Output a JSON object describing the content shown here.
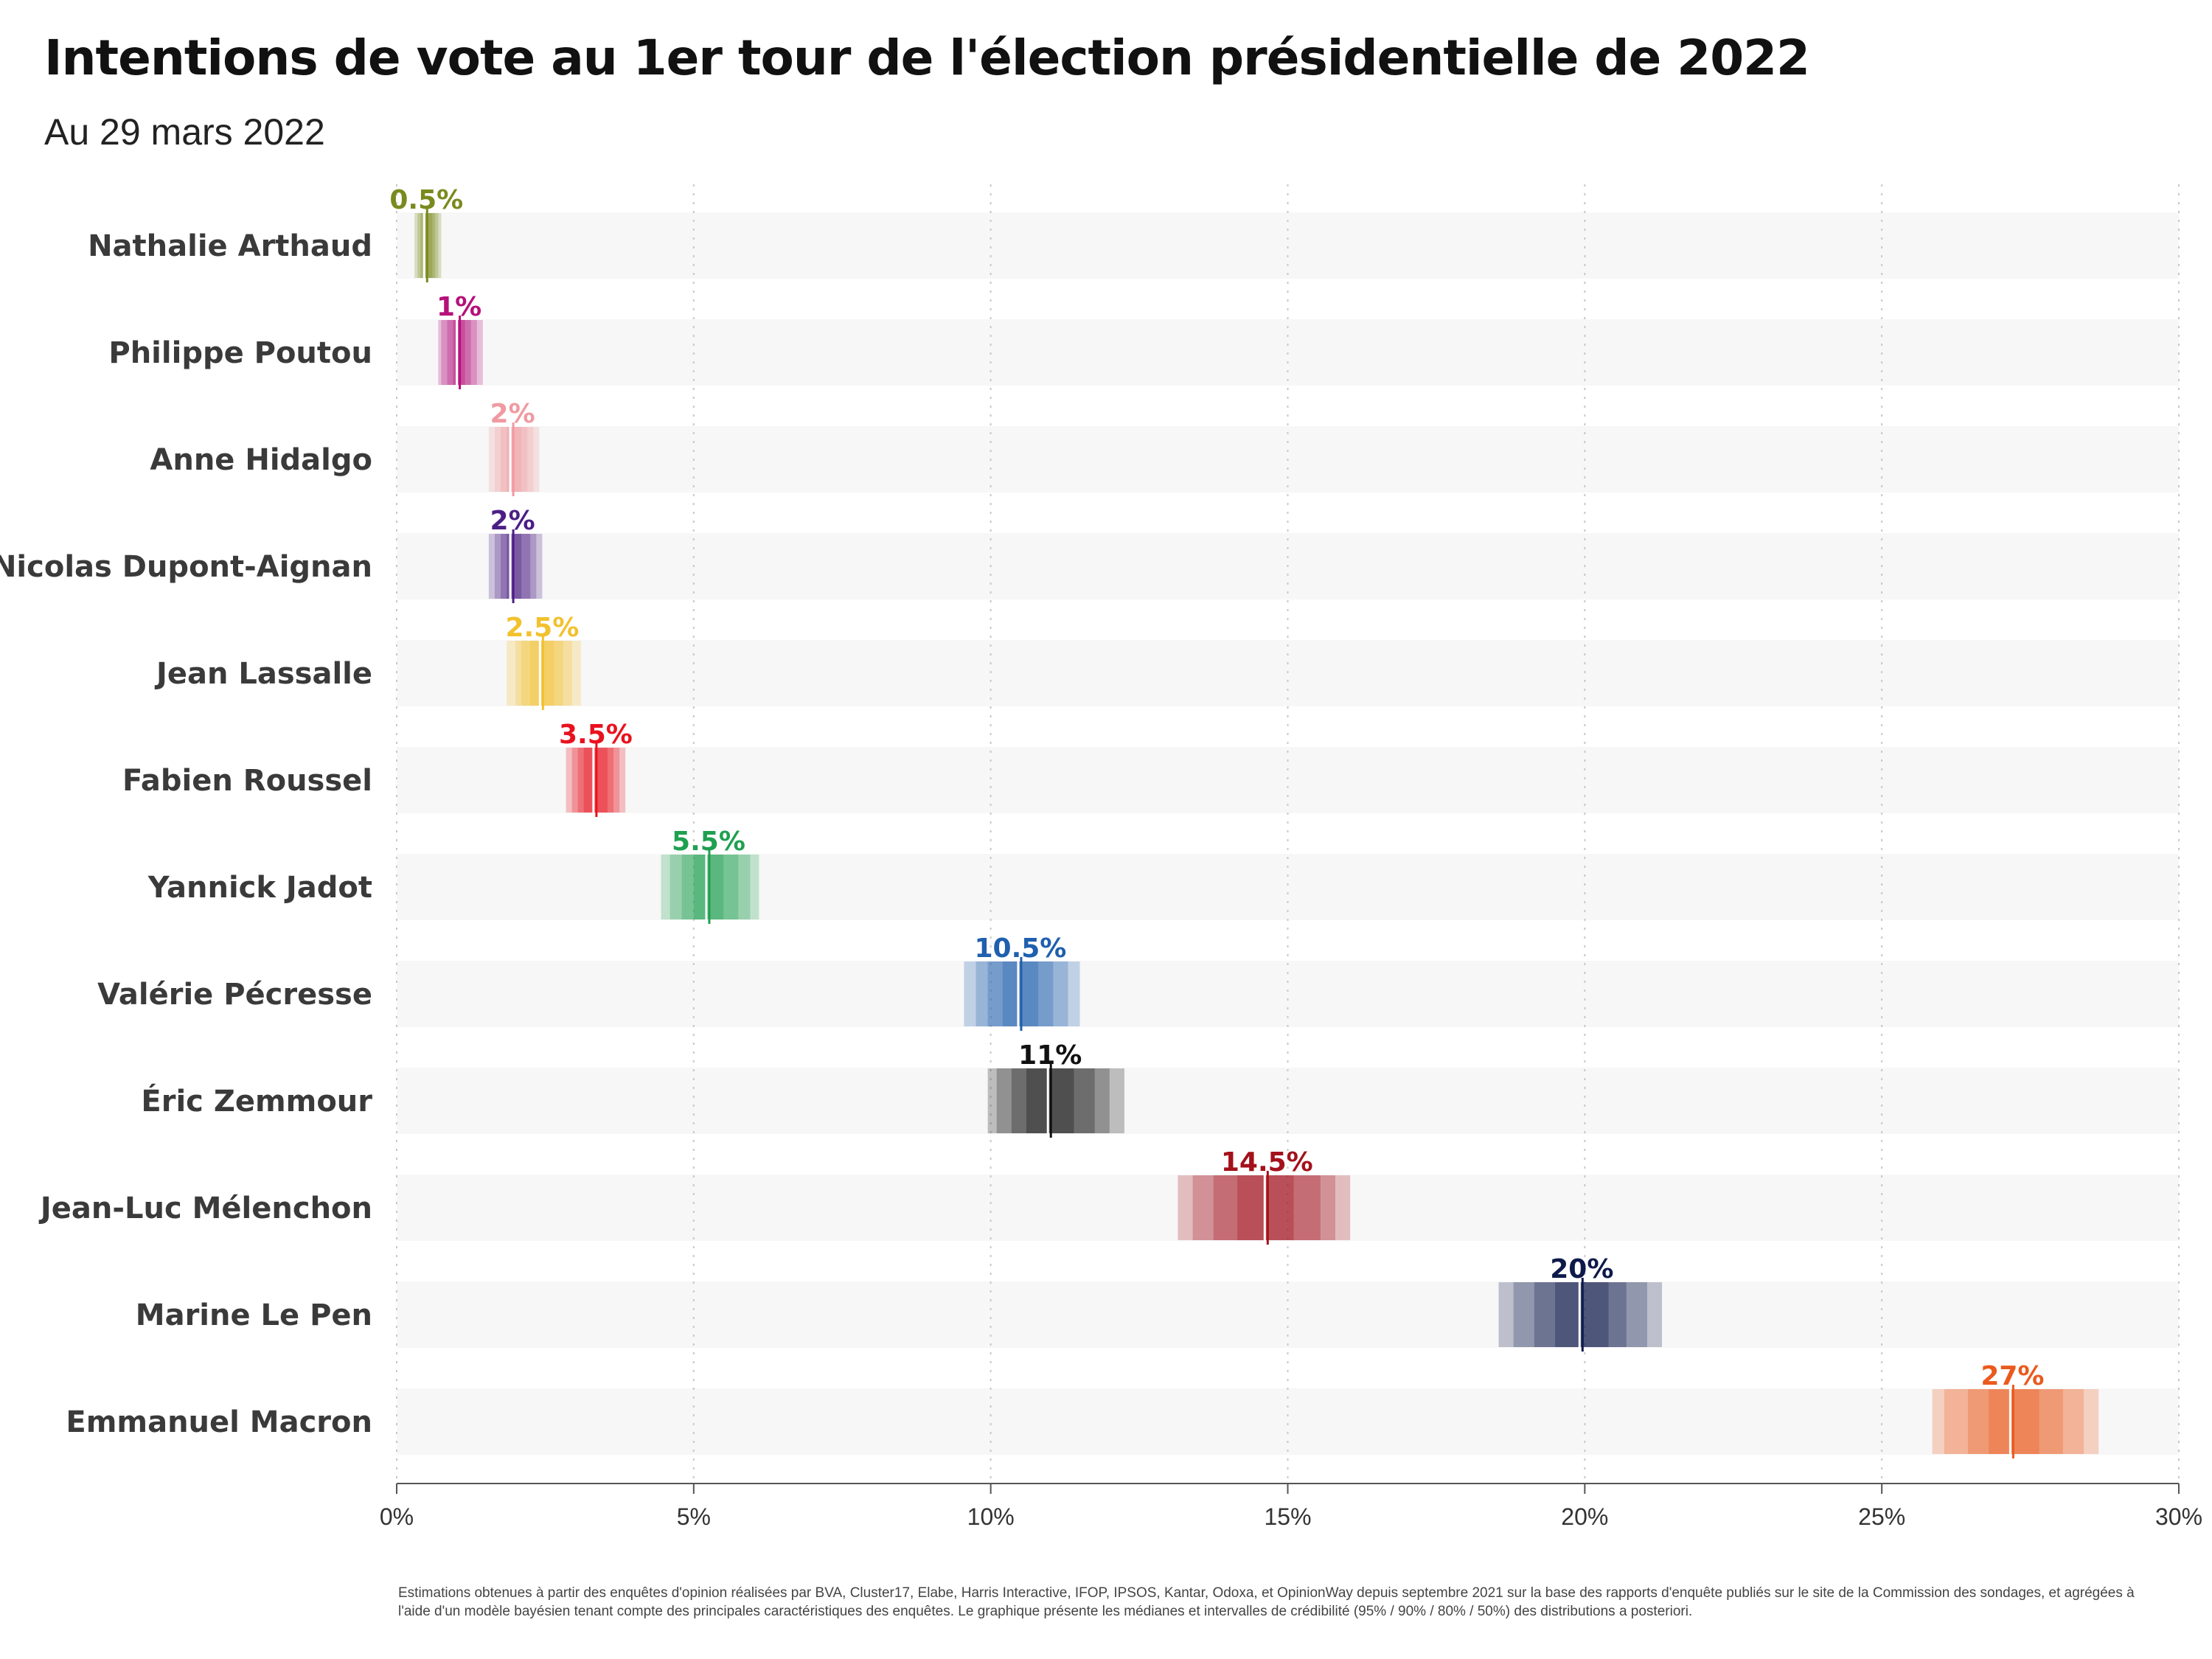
{
  "chart_data": {
    "type": "bar",
    "title": "Intentions de vote au 1er tour de l'élection présidentielle de 2022",
    "subtitle": "Au 29 mars 2022",
    "xlabel": "",
    "ylabel": "",
    "xlim": [
      0,
      30
    ],
    "x_ticks": [
      0,
      5,
      10,
      15,
      20,
      25,
      30
    ],
    "x_tick_labels": [
      "0%",
      "5%",
      "10%",
      "15%",
      "20%",
      "25%",
      "30%"
    ],
    "grid": "vertical dotted",
    "legend": "none",
    "interval_levels": [
      "95%",
      "90%",
      "80%",
      "50%"
    ],
    "candidates": [
      {
        "name": "Nathalie Arthaud",
        "median": 0.5,
        "label": "0.5%",
        "color": "#7a8a1e",
        "ci95": [
          0.3,
          0.75
        ],
        "ci90": [
          0.35,
          0.7
        ],
        "ci80": [
          0.4,
          0.65
        ],
        "ci50": [
          0.45,
          0.6
        ]
      },
      {
        "name": "Philippe Poutou",
        "median": 1.05,
        "label": "1%",
        "color": "#b5117a",
        "ci95": [
          0.7,
          1.45
        ],
        "ci90": [
          0.75,
          1.35
        ],
        "ci80": [
          0.85,
          1.25
        ],
        "ci50": [
          0.95,
          1.15
        ]
      },
      {
        "name": "Anne Hidalgo",
        "median": 1.95,
        "label": "2%",
        "color": "#f09aa1",
        "ci95": [
          1.55,
          2.4
        ],
        "ci90": [
          1.65,
          2.3
        ],
        "ci80": [
          1.75,
          2.2
        ],
        "ci50": [
          1.85,
          2.1
        ]
      },
      {
        "name": "Nicolas Dupont-Aignan",
        "median": 1.95,
        "label": "2%",
        "color": "#4b1e85",
        "ci95": [
          1.55,
          2.45
        ],
        "ci90": [
          1.65,
          2.35
        ],
        "ci80": [
          1.75,
          2.25
        ],
        "ci50": [
          1.85,
          2.1
        ]
      },
      {
        "name": "Jean Lassalle",
        "median": 2.45,
        "label": "2.5%",
        "color": "#f2c12e",
        "ci95": [
          1.85,
          3.1
        ],
        "ci90": [
          2.0,
          2.95
        ],
        "ci80": [
          2.1,
          2.8
        ],
        "ci50": [
          2.25,
          2.65
        ]
      },
      {
        "name": "Fabien Roussel",
        "median": 3.35,
        "label": "3.5%",
        "color": "#e8121e",
        "ci95": [
          2.85,
          3.85
        ],
        "ci90": [
          2.95,
          3.75
        ],
        "ci80": [
          3.05,
          3.65
        ],
        "ci50": [
          3.15,
          3.55
        ]
      },
      {
        "name": "Yannick Jadot",
        "median": 5.25,
        "label": "5.5%",
        "color": "#1fa050",
        "ci95": [
          4.45,
          6.1
        ],
        "ci90": [
          4.6,
          5.95
        ],
        "ci80": [
          4.8,
          5.75
        ],
        "ci50": [
          5.0,
          5.5
        ]
      },
      {
        "name": "Valérie Pécresse",
        "median": 10.5,
        "label": "10.5%",
        "color": "#1f5fae",
        "ci95": [
          9.55,
          11.5
        ],
        "ci90": [
          9.75,
          11.3
        ],
        "ci80": [
          9.95,
          11.05
        ],
        "ci50": [
          10.2,
          10.8
        ]
      },
      {
        "name": "Éric Zemmour",
        "median": 11.0,
        "label": "11%",
        "color": "#111111",
        "ci95": [
          9.95,
          12.25
        ],
        "ci90": [
          10.1,
          12.0
        ],
        "ci80": [
          10.35,
          11.75
        ],
        "ci50": [
          10.6,
          11.4
        ]
      },
      {
        "name": "Jean-Luc Mélenchon",
        "median": 14.65,
        "label": "14.5%",
        "color": "#a3111b",
        "ci95": [
          13.15,
          16.05
        ],
        "ci90": [
          13.4,
          15.8
        ],
        "ci80": [
          13.75,
          15.55
        ],
        "ci50": [
          14.15,
          15.1
        ]
      },
      {
        "name": "Marine Le Pen",
        "median": 19.95,
        "label": "20%",
        "color": "#0e1a4a",
        "ci95": [
          18.55,
          21.3
        ],
        "ci90": [
          18.8,
          21.05
        ],
        "ci80": [
          19.15,
          20.7
        ],
        "ci50": [
          19.5,
          20.4
        ]
      },
      {
        "name": "Emmanuel Macron",
        "median": 27.2,
        "label": "27%",
        "color": "#ea5a1e",
        "ci95": [
          25.85,
          28.65
        ],
        "ci90": [
          26.05,
          28.4
        ],
        "ci80": [
          26.45,
          28.05
        ],
        "ci50": [
          26.8,
          27.65
        ]
      }
    ],
    "note": "Estimations obtenues à partir des enquêtes d'opinion réalisées par BVA, Cluster17, Elabe, Harris Interactive, IFOP, IPSOS, Kantar, Odoxa, et OpinionWay depuis septembre 2021 sur la base des rapports d'enquête publiés sur le site de la Commission des sondages, et agrégées à l'aide d'un modèle bayésien tenant compte des principales caractéristiques des enquêtes. Le graphique présente les médianes et intervalles de crédibilité (95% / 90% / 80% / 50%) des distributions a posteriori."
  }
}
